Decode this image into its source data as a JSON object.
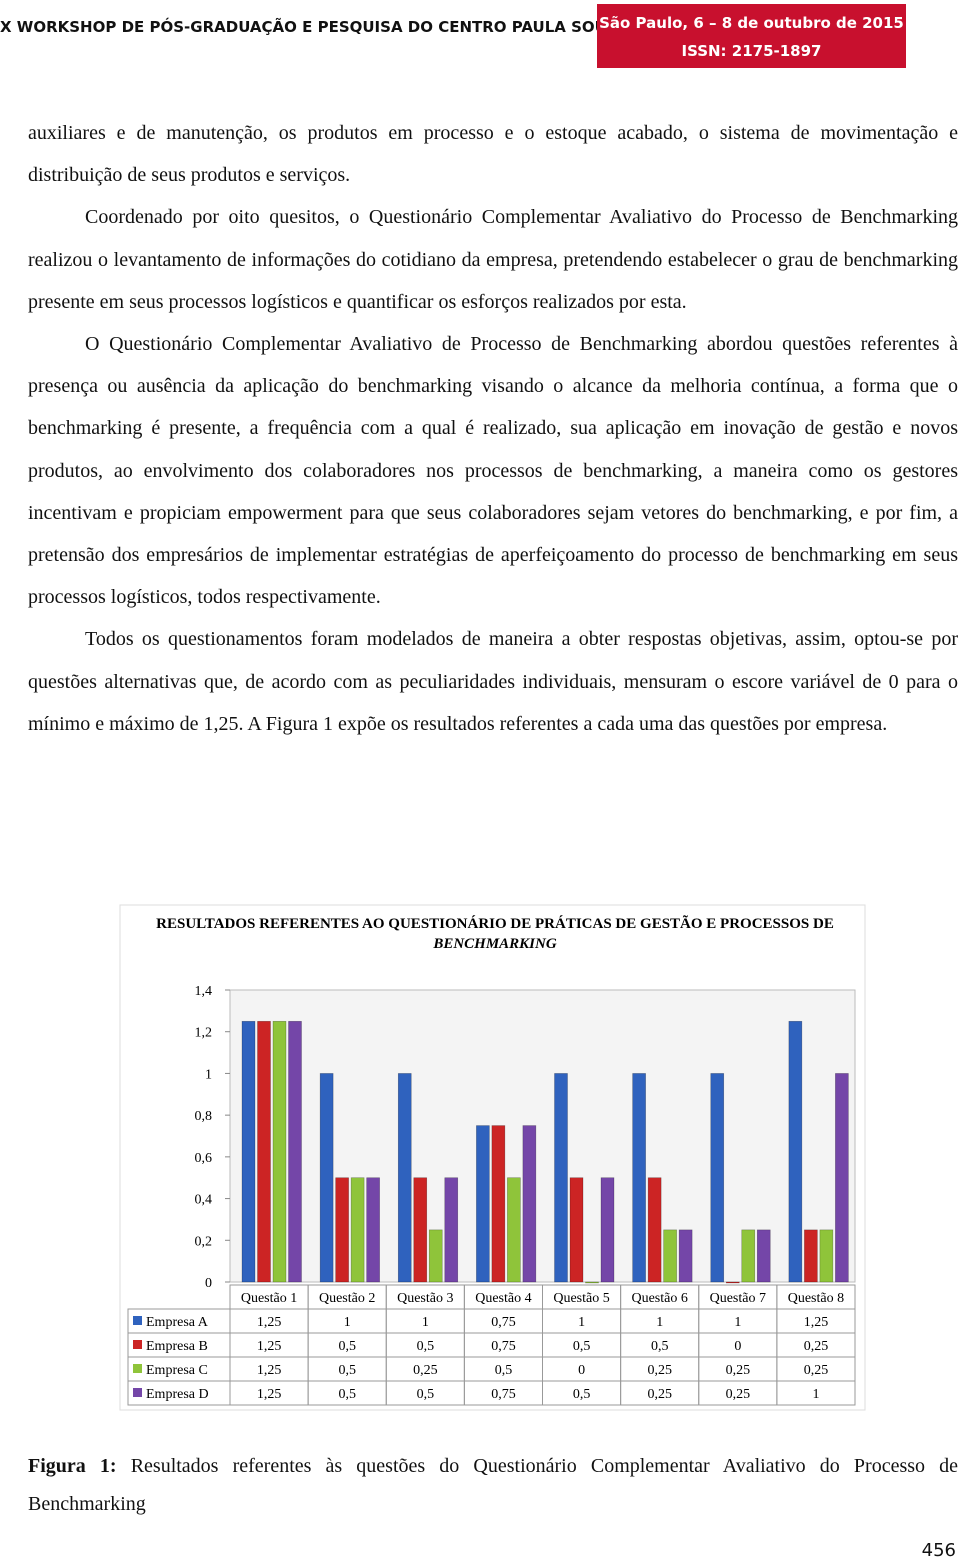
{
  "header": {
    "title": "X WORKSHOP DE PÓS-GRADUAÇÃO E PESQUISA DO CENTRO PAULA SOUZA -",
    "location_date": "São Paulo, 6 – 8 de outubro de 2015",
    "issn": "ISSN: 2175-1897"
  },
  "paragraphs": [
    "auxiliares e de manutenção, os produtos em processo e o estoque acabado, o sistema de movimentação e distribuição de seus produtos e serviços.",
    "Coordenado por oito quesitos, o Questionário Complementar Avaliativo do Processo de Benchmarking realizou o levantamento de informações do cotidiano da empresa, pretendendo estabelecer o grau de benchmarking presente em seus processos logísticos e quantificar os esforços realizados por esta.",
    "O Questionário Complementar Avaliativo de Processo de Benchmarking abordou questões referentes à presença ou ausência da aplicação do benchmarking visando o alcance da melhoria contínua, a forma que o benchmarking é presente, a frequência com a qual é realizado, sua aplicação em inovação de gestão e novos produtos, ao envolvimento dos colaboradores nos processos de benchmarking, a maneira como os gestores incentivam e propiciam empowerment para que seus colaboradores sejam vetores do benchmarking, e por fim, a pretensão dos empresários de implementar estratégias de aperfeiçoamento do processo de benchmarking em seus processos logísticos, todos respectivamente.",
    "Todos os questionamentos foram modelados de maneira a obter respostas objetivas, assim, optou-se por questões alternativas que, de acordo com as peculiaridades individuais, mensuram o escore variável de 0 para o mínimo e máximo de 1,25. A Figura 1 expõe os resultados referentes a cada uma das questões por empresa."
  ],
  "chart_data": {
    "type": "bar",
    "title": "RESULTADOS REFERENTES AO QUESTIONÁRIO DE PRÁTICAS DE GESTÃO E PROCESSOS DE",
    "title_italic": "BENCHMARKING",
    "categories": [
      "Questão 1",
      "Questão 2",
      "Questão 3",
      "Questão 4",
      "Questão 5",
      "Questão 6",
      "Questão 7",
      "Questão 8"
    ],
    "series": [
      {
        "name": "Empresa A",
        "color": "#2f62be",
        "values": [
          1.25,
          1,
          1,
          0.75,
          1,
          1,
          1,
          1.25
        ],
        "value_labels": [
          "1,25",
          "1",
          "1",
          "0,75",
          "1",
          "1",
          "1",
          "1,25"
        ]
      },
      {
        "name": "Empresa B",
        "color": "#cc2424",
        "values": [
          1.25,
          0.5,
          0.5,
          0.75,
          0.5,
          0.5,
          0,
          0.25
        ],
        "value_labels": [
          "1,25",
          "0,5",
          "0,5",
          "0,75",
          "0,5",
          "0,5",
          "0",
          "0,25"
        ]
      },
      {
        "name": "Empresa C",
        "color": "#8fc43a",
        "values": [
          1.25,
          0.5,
          0.25,
          0.5,
          0,
          0.25,
          0.25,
          0.25
        ],
        "value_labels": [
          "1,25",
          "0,5",
          "0,25",
          "0,5",
          "0",
          "0,25",
          "0,25",
          "0,25"
        ]
      },
      {
        "name": "Empresa D",
        "color": "#7446a8",
        "values": [
          1.25,
          0.5,
          0.5,
          0.75,
          0.5,
          0.25,
          0.25,
          1
        ],
        "value_labels": [
          "1,25",
          "0,5",
          "0,5",
          "0,75",
          "0,5",
          "0,25",
          "0,25",
          "1"
        ]
      }
    ],
    "ylim": [
      0,
      1.4
    ],
    "yticks": [
      0,
      {
        "value": 0.2,
        "label": "0,2"
      },
      {
        "value": 0.4,
        "label": "0,4"
      },
      {
        "value": 0.6,
        "label": "0,6"
      },
      {
        "value": 0.8,
        "label": "0,8"
      },
      1,
      {
        "value": 1.2,
        "label": "1,2"
      },
      {
        "value": 1.4,
        "label": "1,4"
      }
    ]
  },
  "caption": {
    "label": "Figura 1:",
    "text": "Resultados referentes às questões do Questionário Complementar Avaliativo do Processo de Benchmarking"
  },
  "page_number": "456"
}
